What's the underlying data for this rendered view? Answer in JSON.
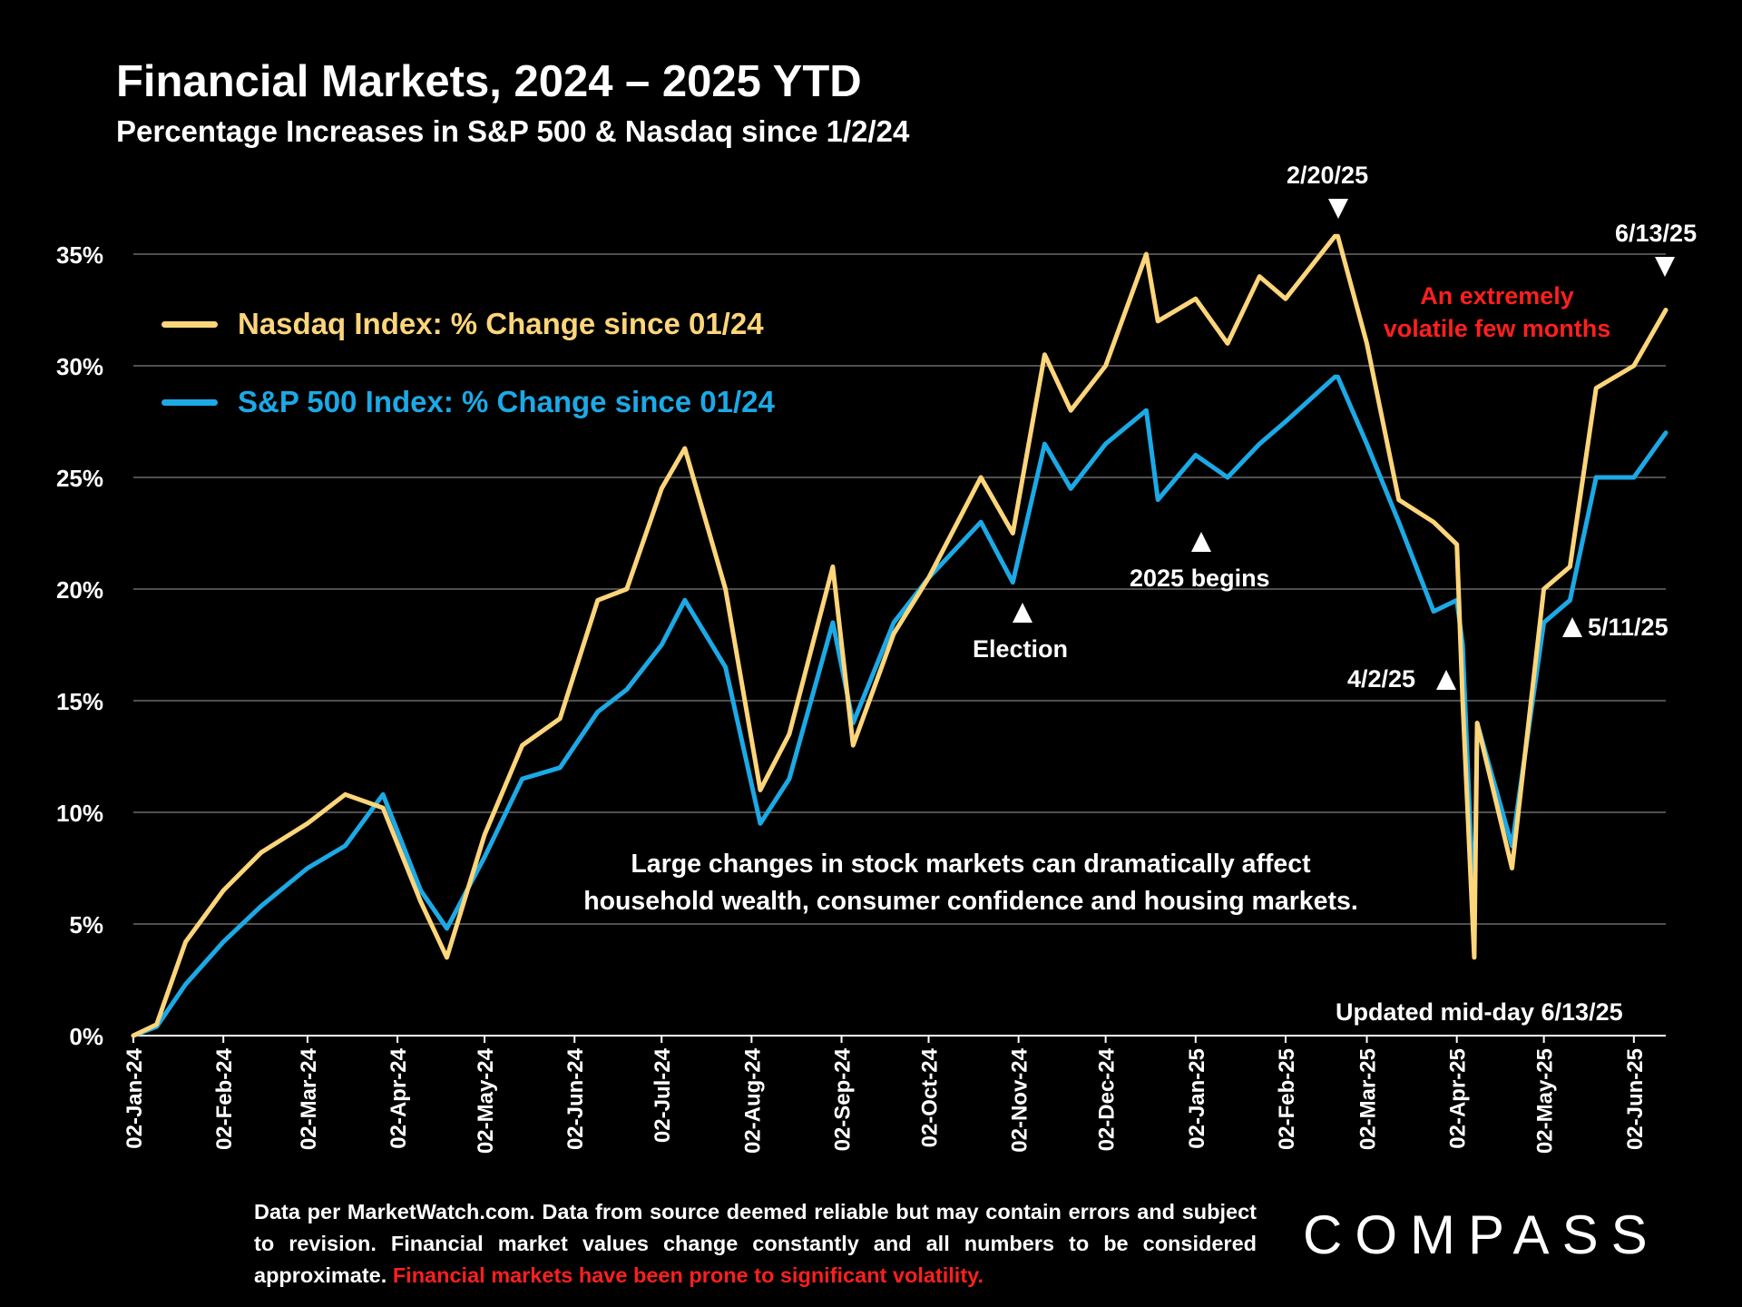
{
  "title": "Financial Markets, 2024 – 2025 YTD",
  "subtitle": "Percentage Increases in S&P 500 & Nasdaq since 1/2/24",
  "legend": {
    "nasdaq": "Nasdaq Index: % Change since 01/24",
    "sp500": "S&P 500 Index: % Change since 01/24"
  },
  "annotations": {
    "feb20": "2/20/25",
    "jun13": "6/13/25",
    "volatile_line1": "An extremely",
    "volatile_line2": "volatile few months",
    "election": "Election",
    "begins2025": "2025 begins",
    "apr2": "4/2/25",
    "may11": "5/11/25",
    "updated": "Updated mid-day 6/13/25",
    "note_line1": "Large changes in stock markets can dramatically affect",
    "note_line2": "household wealth, consumer confidence and housing markets."
  },
  "footer": {
    "text": "Data per MarketWatch.com. Data from source deemed reliable but may contain errors and subject to revision. Financial market values change constantly and all numbers to be considered approximate.",
    "red_text": "Financial markets have been prone to significant volatility."
  },
  "logo": "COMPASS",
  "colors": {
    "background": "#000000",
    "nasdaq": "#fdd57a",
    "sp500": "#1ca9e6",
    "red_text": "#ff1f1f",
    "gridline": "#6b6b6b"
  },
  "chart_data": {
    "type": "line",
    "title": "Financial Markets, 2024 – 2025 YTD",
    "subtitle": "Percentage Increases in S&P 500 & Nasdaq since 1/2/24",
    "x_tick_labels": [
      "02-Jan-24",
      "02-Feb-24",
      "02-Mar-24",
      "02-Apr-24",
      "02-May-24",
      "02-Jun-24",
      "02-Jul-24",
      "02-Aug-24",
      "02-Sep-24",
      "02-Oct-24",
      "02-Nov-24",
      "02-Dec-24",
      "02-Jan-25",
      "02-Feb-25",
      "02-Mar-25",
      "02-Apr-25",
      "02-May-25",
      "02-Jun-25"
    ],
    "y_tick_labels": [
      "0%",
      "5%",
      "10%",
      "15%",
      "20%",
      "25%",
      "30%",
      "35%"
    ],
    "ylim": [
      0,
      35
    ],
    "grid": true,
    "legend_position": "top-left",
    "x": [
      "2024-01-02",
      "2024-01-10",
      "2024-01-20",
      "2024-02-02",
      "2024-02-15",
      "2024-03-02",
      "2024-03-15",
      "2024-03-28",
      "2024-04-10",
      "2024-04-19",
      "2024-05-02",
      "2024-05-15",
      "2024-05-28",
      "2024-06-10",
      "2024-06-20",
      "2024-07-02",
      "2024-07-10",
      "2024-07-24",
      "2024-08-05",
      "2024-08-15",
      "2024-08-30",
      "2024-09-06",
      "2024-09-20",
      "2024-10-02",
      "2024-10-20",
      "2024-10-31",
      "2024-11-11",
      "2024-11-20",
      "2024-12-02",
      "2024-12-16",
      "2024-12-20",
      "2025-01-02",
      "2025-01-13",
      "2025-01-24",
      "2025-02-02",
      "2025-02-19",
      "2025-02-20",
      "2025-03-02",
      "2025-03-13",
      "2025-03-25",
      "2025-04-02",
      "2025-04-04",
      "2025-04-08",
      "2025-04-09",
      "2025-04-21",
      "2025-05-02",
      "2025-05-11",
      "2025-05-20",
      "2025-06-02",
      "2025-06-13"
    ],
    "series": [
      {
        "name": "Nasdaq Index: % Change since 01/24",
        "values": [
          0,
          0.5,
          4.2,
          6.5,
          8.2,
          9.5,
          10.8,
          10.2,
          6.0,
          3.5,
          9.0,
          13.0,
          14.2,
          19.5,
          20.0,
          24.5,
          26.3,
          20.0,
          11.0,
          13.5,
          21.0,
          13.0,
          18.0,
          20.5,
          25.0,
          22.5,
          30.5,
          28.0,
          30.0,
          35.0,
          32.0,
          33.0,
          31.0,
          34.0,
          33.0,
          35.8,
          35.8,
          31.0,
          24.0,
          23.0,
          22.0,
          15.0,
          3.5,
          14.0,
          7.5,
          20.0,
          21.0,
          29.0,
          30.0,
          32.5
        ]
      },
      {
        "name": "S&P 500 Index: % Change since 01/24",
        "values": [
          0,
          0.4,
          2.3,
          4.2,
          5.8,
          7.5,
          8.5,
          10.8,
          6.5,
          4.8,
          8.0,
          11.5,
          12.0,
          14.5,
          15.5,
          17.5,
          19.5,
          16.5,
          9.5,
          11.5,
          18.5,
          14.0,
          18.5,
          20.5,
          23.0,
          20.3,
          26.5,
          24.5,
          26.5,
          28.0,
          24.0,
          26.0,
          25.0,
          26.5,
          27.5,
          29.5,
          29.5,
          26.5,
          23.0,
          19.0,
          19.5,
          17.5,
          5.0,
          14.0,
          8.5,
          18.5,
          19.5,
          25.0,
          25.0,
          27.0
        ]
      }
    ]
  }
}
